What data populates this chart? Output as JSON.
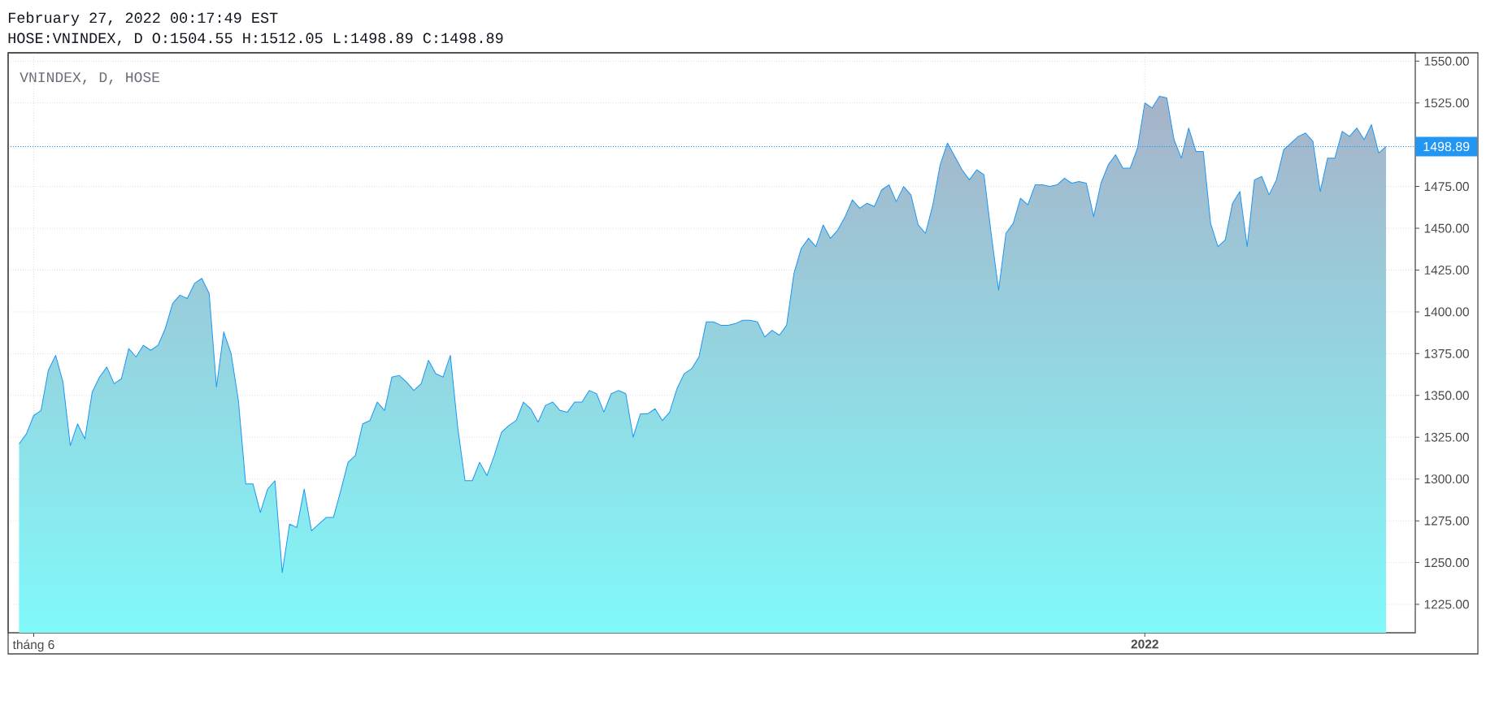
{
  "chart_data": {
    "type": "area",
    "title": "HOSE:VNINDEX, D O:1504.55 H:1512.05 L:1498.89 C:1498.89",
    "subtitle": "VNINDEX, D, HOSE",
    "annotations": [
      "February 27, 2022 00:17:49 EST"
    ],
    "categories": [
      null,
      null,
      "tháng 6",
      null,
      null,
      null,
      null,
      null,
      null,
      null,
      null,
      null,
      null,
      null,
      null,
      null,
      null,
      null,
      null,
      null,
      null,
      null,
      null,
      null,
      null,
      null,
      null,
      null,
      null,
      null,
      null,
      null,
      null,
      null,
      null,
      null,
      null,
      null,
      null,
      null,
      null,
      null,
      null,
      null,
      null,
      null,
      null,
      null,
      null,
      null,
      null,
      null,
      null,
      null,
      null,
      null,
      null,
      null,
      null,
      null,
      null,
      null,
      null,
      null,
      null,
      null,
      null,
      null,
      null,
      null,
      null,
      null,
      null,
      null,
      null,
      null,
      null,
      null,
      null,
      null,
      null,
      null,
      null,
      null,
      null,
      null,
      null,
      null,
      null,
      null,
      null,
      null,
      null,
      null,
      null,
      null,
      null,
      null,
      null,
      null,
      null,
      null,
      null,
      null,
      null,
      null,
      null,
      null,
      null,
      null,
      null,
      null,
      null,
      null,
      null,
      null,
      null,
      null,
      null,
      null,
      null,
      null,
      null,
      null,
      null,
      null,
      null,
      null,
      null,
      null,
      null,
      null,
      null,
      null,
      null,
      null,
      null,
      null,
      null,
      null,
      null,
      null,
      null,
      null,
      null,
      null,
      null,
      null,
      null,
      null,
      null,
      null,
      null,
      null,
      "2022",
      null,
      null,
      null,
      null,
      null,
      null,
      null,
      null,
      null,
      null,
      null,
      null,
      null,
      null,
      null,
      null,
      null,
      null,
      null,
      null,
      null,
      null,
      null,
      null,
      null,
      null,
      null,
      null,
      null,
      null,
      null,
      null,
      null
    ],
    "values": [
      1321,
      1327,
      1338,
      1341,
      1365,
      1374,
      1358,
      1320,
      1333,
      1324,
      1352,
      1361,
      1367,
      1357,
      1360,
      1378,
      1373,
      1380,
      1377,
      1380,
      1390,
      1405,
      1410,
      1408,
      1417,
      1420,
      1411,
      1355,
      1388,
      1375,
      1347,
      1297,
      1297,
      1280,
      1294,
      1299,
      1244,
      1273,
      1271,
      1294,
      1269,
      1273,
      1277,
      1277,
      1293,
      1310,
      1314,
      1333,
      1335,
      1346,
      1341,
      1361,
      1362,
      1358,
      1353,
      1357,
      1371,
      1363,
      1361,
      1374,
      1331,
      1299,
      1299,
      1310,
      1302,
      1314,
      1328,
      1332,
      1335,
      1346,
      1342,
      1334,
      1344,
      1346,
      1341,
      1340,
      1346,
      1346,
      1353,
      1351,
      1340,
      1351,
      1353,
      1351,
      1325,
      1339,
      1339,
      1342,
      1335,
      1340,
      1354,
      1363,
      1366,
      1373,
      1394,
      1394,
      1392,
      1392,
      1393,
      1395,
      1395,
      1394,
      1385,
      1389,
      1386,
      1392,
      1423,
      1438,
      1444,
      1439,
      1452,
      1444,
      1449,
      1457,
      1467,
      1462,
      1465,
      1463,
      1473,
      1476,
      1466,
      1475,
      1470,
      1452,
      1447,
      1464,
      1488,
      1501,
      1493,
      1485,
      1479,
      1485,
      1482,
      1446,
      1413,
      1447,
      1453,
      1468,
      1464,
      1476,
      1476,
      1475,
      1476,
      1480,
      1477,
      1478,
      1477,
      1457,
      1477,
      1488,
      1494,
      1486,
      1486,
      1498,
      1525,
      1522,
      1529,
      1528,
      1503,
      1492,
      1510,
      1496,
      1496,
      1453,
      1439,
      1443,
      1465,
      1472,
      1439,
      1479,
      1481,
      1470,
      1479,
      1497,
      1501,
      1505,
      1507,
      1502,
      1472,
      1492,
      1492,
      1508,
      1505,
      1510,
      1503,
      1512,
      1495,
      1498.89
    ],
    "color": "#2196f3",
    "ylim": [
      1208,
      1555
    ],
    "yticks": [
      {
        "value": 1225,
        "label": "1225.00"
      },
      {
        "value": 1250,
        "label": "1250.00"
      },
      {
        "value": 1275,
        "label": "1275.00"
      },
      {
        "value": 1300,
        "label": "1300.00"
      },
      {
        "value": 1325,
        "label": "1325.00"
      },
      {
        "value": 1350,
        "label": "1350.00"
      },
      {
        "value": 1375,
        "label": "1375.00"
      },
      {
        "value": 1400,
        "label": "1400.00"
      },
      {
        "value": 1425,
        "label": "1425.00"
      },
      {
        "value": 1450,
        "label": "1450.00"
      },
      {
        "value": 1475,
        "label": "1475.00"
      },
      {
        "value": 1525,
        "label": "1525.00"
      },
      {
        "value": 1550,
        "label": "1550.00"
      }
    ],
    "ref_lines": [
      {
        "axis": "y",
        "value": 1498.89,
        "label": "1498.89",
        "color": "#2196f3",
        "line_style": "dotted"
      }
    ],
    "grid": true,
    "marker": "none",
    "line_style": "solid"
  }
}
